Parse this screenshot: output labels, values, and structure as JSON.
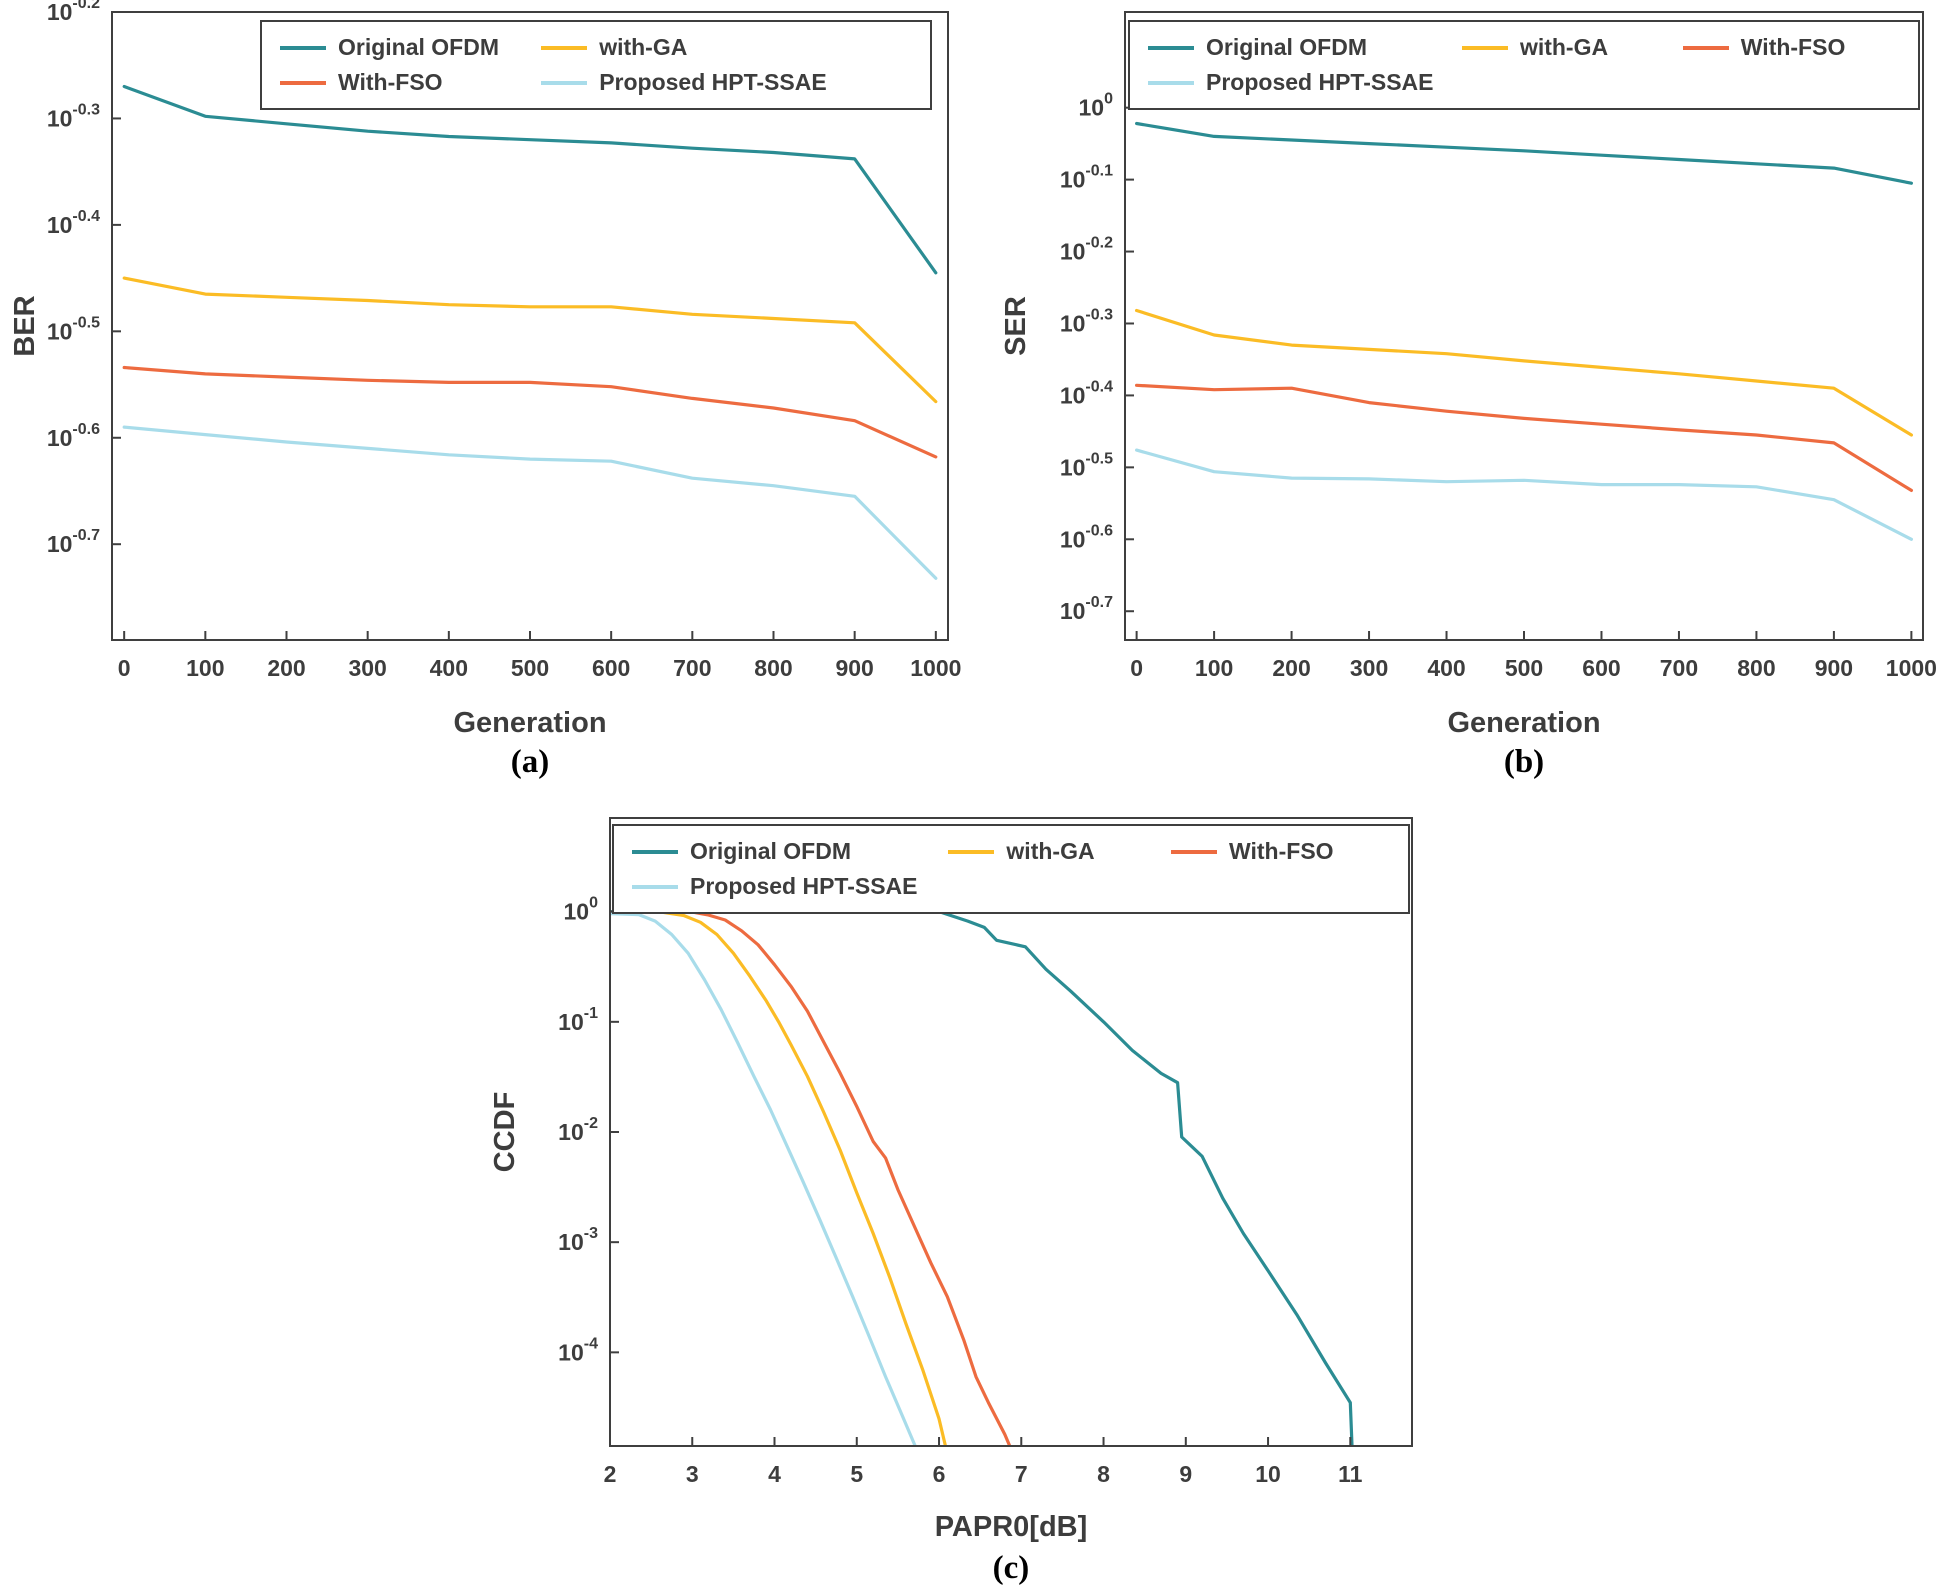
{
  "figure": {
    "background": "#ffffff"
  },
  "style": {
    "axis_color": "#3f3f3f",
    "tick_text_color": "#3d3d3d",
    "label_text_color": "#3d3d3d",
    "series_colors": {
      "original_ofdm": "#2B8C93",
      "with_ga": "#FBBC25",
      "with_fso": "#ED6B40",
      "proposed_hpt_ssae": "#A8DCEA"
    }
  },
  "chart_data": [
    {
      "type": "line",
      "caption": "(a)",
      "xlabel": "Generation",
      "ylabel": "BER",
      "y_scale": "log10-exponent",
      "x_range": [
        -15,
        1015
      ],
      "y_range": [
        -0.79,
        -0.2
      ],
      "x_ticks": [
        0,
        100,
        200,
        300,
        400,
        500,
        600,
        700,
        800,
        900,
        1000
      ],
      "y_ticks": [
        -0.2,
        -0.3,
        -0.4,
        -0.5,
        -0.6,
        -0.7
      ],
      "x": [
        0,
        100,
        200,
        300,
        400,
        500,
        600,
        700,
        800,
        900,
        1000
      ],
      "series": [
        {
          "name": "Original OFDM",
          "color": "#2B8C93",
          "values": [
            -0.27,
            -0.298,
            -0.305,
            -0.312,
            -0.317,
            -0.32,
            -0.323,
            -0.328,
            -0.332,
            -0.338,
            -0.445
          ]
        },
        {
          "name": "with-GA",
          "color": "#FBBC25",
          "values": [
            -0.45,
            -0.465,
            -0.468,
            -0.471,
            -0.475,
            -0.477,
            -0.477,
            -0.484,
            -0.488,
            -0.492,
            -0.566
          ]
        },
        {
          "name": "With-FSO",
          "color": "#ED6B40",
          "values": [
            -0.534,
            -0.54,
            -0.543,
            -0.546,
            -0.548,
            -0.548,
            -0.552,
            -0.563,
            -0.572,
            -0.584,
            -0.618
          ]
        },
        {
          "name": "Proposed HPT-SSAE",
          "color": "#A8DCEA",
          "values": [
            -0.59,
            -0.597,
            -0.604,
            -0.61,
            -0.616,
            -0.62,
            -0.622,
            -0.638,
            -0.645,
            -0.655,
            -0.732
          ]
        }
      ],
      "legend_position": "top-inside"
    },
    {
      "type": "line",
      "caption": "(b)",
      "xlabel": "Generation",
      "ylabel": "SER",
      "y_scale": "log10-exponent",
      "x_range": [
        -15,
        1015
      ],
      "y_range": [
        -0.74,
        0.133
      ],
      "x_ticks": [
        0,
        100,
        200,
        300,
        400,
        500,
        600,
        700,
        800,
        900,
        1000
      ],
      "y_ticks": [
        0,
        -0.1,
        -0.2,
        -0.3,
        -0.4,
        -0.5,
        -0.6,
        -0.7
      ],
      "x": [
        0,
        100,
        200,
        300,
        400,
        500,
        600,
        700,
        800,
        900,
        1000
      ],
      "series": [
        {
          "name": "Original OFDM",
          "color": "#2B8C93",
          "values": [
            -0.022,
            -0.04,
            -0.045,
            -0.05,
            -0.055,
            -0.06,
            -0.066,
            -0.072,
            -0.078,
            -0.084,
            -0.105
          ]
        },
        {
          "name": "with-GA",
          "color": "#FBBC25",
          "values": [
            -0.282,
            -0.316,
            -0.33,
            -0.336,
            -0.342,
            -0.352,
            -0.361,
            -0.37,
            -0.38,
            -0.39,
            -0.455
          ]
        },
        {
          "name": "With-FSO",
          "color": "#ED6B40",
          "values": [
            -0.386,
            -0.392,
            -0.39,
            -0.41,
            -0.422,
            -0.432,
            -0.44,
            -0.448,
            -0.455,
            -0.466,
            -0.532
          ]
        },
        {
          "name": "Proposed HPT-SSAE",
          "color": "#A8DCEA",
          "values": [
            -0.476,
            -0.506,
            -0.515,
            -0.516,
            -0.52,
            -0.518,
            -0.524,
            -0.524,
            -0.527,
            -0.545,
            -0.6
          ]
        }
      ],
      "legend_position": "top-inside"
    },
    {
      "type": "line",
      "caption": "(c)",
      "xlabel": "PAPR0[dB]",
      "ylabel": "CCDF",
      "y_scale": "log10-value",
      "x_range": [
        2,
        11.75
      ],
      "y_range": [
        -4.85,
        0.85
      ],
      "x_ticks": [
        2,
        3,
        4,
        5,
        6,
        7,
        8,
        9,
        10,
        11
      ],
      "y_ticks": [
        0,
        -1,
        -2,
        -3,
        -4
      ],
      "series": [
        {
          "name": "Original OFDM",
          "color": "#2B8C93",
          "points": [
            [
              2,
              1
            ],
            [
              6.0,
              1
            ],
            [
              6.35,
              0.82
            ],
            [
              6.55,
              0.72
            ],
            [
              6.7,
              0.55
            ],
            [
              7.05,
              0.48
            ],
            [
              7.3,
              0.3
            ],
            [
              7.6,
              0.19
            ],
            [
              8.0,
              0.1
            ],
            [
              8.35,
              0.055
            ],
            [
              8.7,
              0.034
            ],
            [
              8.9,
              0.028
            ],
            [
              8.95,
              0.009
            ],
            [
              9.2,
              0.006
            ],
            [
              9.45,
              0.0025
            ],
            [
              9.7,
              0.0012
            ],
            [
              10.0,
              0.00055
            ],
            [
              10.35,
              0.00022
            ],
            [
              10.7,
              8e-05
            ],
            [
              11.0,
              3.5e-05
            ],
            [
              11.05,
              4e-06
            ]
          ]
        },
        {
          "name": "with-GA",
          "color": "#FBBC25",
          "points": [
            [
              2,
              0.985
            ],
            [
              2.65,
              0.985
            ],
            [
              2.9,
              0.92
            ],
            [
              3.1,
              0.8
            ],
            [
              3.3,
              0.62
            ],
            [
              3.5,
              0.42
            ],
            [
              3.7,
              0.26
            ],
            [
              3.9,
              0.155
            ],
            [
              4.05,
              0.1
            ],
            [
              4.2,
              0.062
            ],
            [
              4.4,
              0.032
            ],
            [
              4.6,
              0.015
            ],
            [
              4.8,
              0.0068
            ],
            [
              5.0,
              0.0028
            ],
            [
              5.2,
              0.0012
            ],
            [
              5.4,
              0.00048
            ],
            [
              5.6,
              0.00018
            ],
            [
              5.8,
              7e-05
            ],
            [
              6.0,
              2.5e-05
            ],
            [
              6.1,
              1.2e-05
            ],
            [
              6.18,
              4e-06
            ]
          ]
        },
        {
          "name": "With-FSO",
          "color": "#ED6B40",
          "points": [
            [
              2,
              0.99
            ],
            [
              3.0,
              0.99
            ],
            [
              3.2,
              0.93
            ],
            [
              3.4,
              0.84
            ],
            [
              3.6,
              0.67
            ],
            [
              3.8,
              0.5
            ],
            [
              4.0,
              0.33
            ],
            [
              4.2,
              0.21
            ],
            [
              4.4,
              0.125
            ],
            [
              4.6,
              0.065
            ],
            [
              4.8,
              0.034
            ],
            [
              5.0,
              0.017
            ],
            [
              5.2,
              0.0082
            ],
            [
              5.35,
              0.0058
            ],
            [
              5.5,
              0.003
            ],
            [
              5.7,
              0.0014
            ],
            [
              5.9,
              0.00065
            ],
            [
              6.1,
              0.00032
            ],
            [
              6.3,
              0.00013
            ],
            [
              6.45,
              6e-05
            ],
            [
              6.6,
              3.5e-05
            ],
            [
              6.8,
              1.8e-05
            ],
            [
              7.0,
              8e-06
            ],
            [
              7.05,
              4e-06
            ]
          ]
        },
        {
          "name": "Proposed HPT-SSAE",
          "color": "#A8DCEA",
          "points": [
            [
              2,
              0.96
            ],
            [
              2.35,
              0.94
            ],
            [
              2.55,
              0.82
            ],
            [
              2.75,
              0.62
            ],
            [
              2.95,
              0.42
            ],
            [
              3.15,
              0.24
            ],
            [
              3.35,
              0.13
            ],
            [
              3.55,
              0.065
            ],
            [
              3.75,
              0.032
            ],
            [
              3.95,
              0.016
            ],
            [
              4.15,
              0.0075
            ],
            [
              4.35,
              0.0035
            ],
            [
              4.55,
              0.0016
            ],
            [
              4.75,
              0.00072
            ],
            [
              4.95,
              0.00032
            ],
            [
              5.15,
              0.00014
            ],
            [
              5.35,
              6e-05
            ],
            [
              5.55,
              2.7e-05
            ],
            [
              5.75,
              1.2e-05
            ],
            [
              5.85,
              5e-06
            ]
          ]
        }
      ],
      "legend_position": "top-inside"
    }
  ]
}
